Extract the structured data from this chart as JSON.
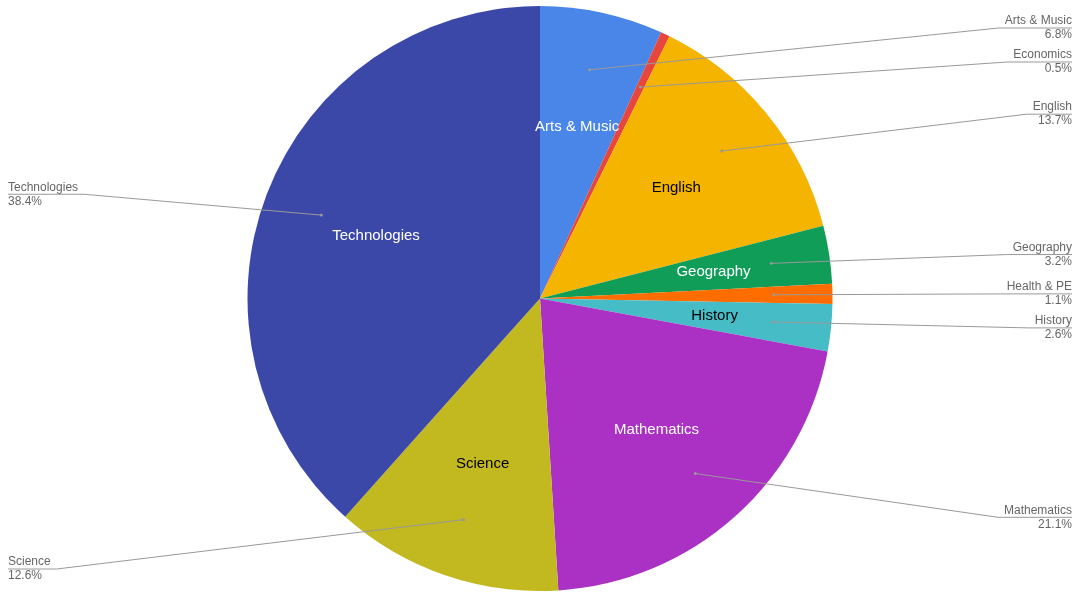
{
  "chart_data": {
    "type": "pie",
    "categories": [
      "Arts & Music",
      "Economics",
      "English",
      "Geography",
      "Health & PE",
      "History",
      "Mathematics",
      "Science",
      "Technologies"
    ],
    "values": [
      6.8,
      0.5,
      13.7,
      3.2,
      1.1,
      2.6,
      21.1,
      12.6,
      38.4
    ],
    "value_labels": [
      "6.8%",
      "0.5%",
      "13.7%",
      "3.2%",
      "1.1%",
      "2.6%",
      "21.1%",
      "12.6%",
      "38.4%"
    ],
    "colors": [
      "#4a86e8",
      "#e8453c",
      "#f4b400",
      "#0f9d58",
      "#ff6d01",
      "#46bdc6",
      "#ab30c4",
      "#c2b820",
      "#3b48a8"
    ],
    "legend": false
  }
}
